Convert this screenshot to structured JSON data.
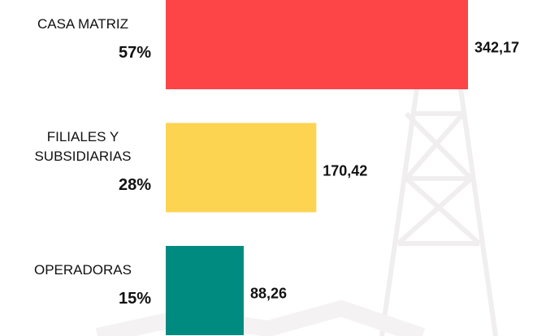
{
  "chart_data": {
    "type": "hbar",
    "categories": [
      "CASA MATRIZ",
      "FILIALES Y SUBSIDIARIAS",
      "OPERADORAS"
    ],
    "values": [
      342.17,
      170.42,
      88.26
    ],
    "value_labels": [
      "342,17",
      "170,42",
      "88,26"
    ],
    "percent_labels": [
      "57%",
      "28%",
      "15%"
    ],
    "colors": [
      "#fd4548",
      "#fdd352",
      "#008b80"
    ]
  }
}
